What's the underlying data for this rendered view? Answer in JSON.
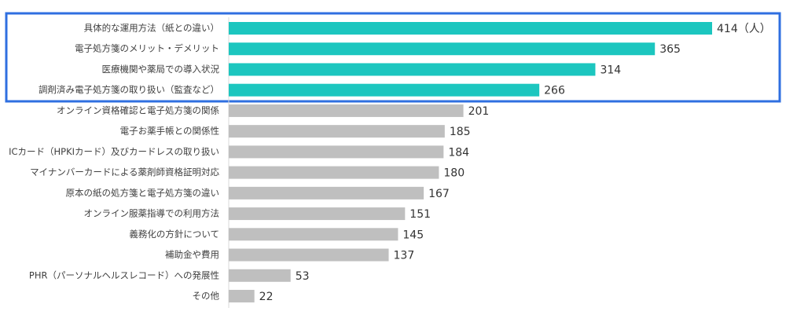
{
  "chart_data": {
    "type": "bar",
    "categories": [
      "具体的な運用方法（紙との違い）",
      "電子処方箋のメリット・デメリット",
      "医療機関や薬局での導入状況",
      "調剤済み電子処方箋の取り扱い（監査など）",
      "オンライン資格確認と電子処方箋の関係",
      "電子お薬手帳との関係性",
      "ICカード（HPKIカード）及びカードレスの取り扱い",
      "マイナンバーカードによる薬剤師資格証明対応",
      "原本の紙の処方箋と電子処方箋の違い",
      "オンライン服薬指導での利用方法",
      "義務化の方針について",
      "補助金や費用",
      "PHR（パーソナルヘルスレコード）への発展性",
      "その他"
    ],
    "values": [
      414,
      365,
      314,
      266,
      201,
      185,
      184,
      180,
      167,
      151,
      145,
      137,
      53,
      22
    ],
    "value_labels": [
      "414（人）",
      "365",
      "314",
      "266",
      "201",
      "185",
      "184",
      "180",
      "167",
      "151",
      "145",
      "137",
      "53",
      "22"
    ],
    "colors": [
      "#1cc6bf",
      "#1cc6bf",
      "#1cc6bf",
      "#1cc6bf",
      "#bfbfbf",
      "#bfbfbf",
      "#bfbfbf",
      "#bfbfbf",
      "#bfbfbf",
      "#bfbfbf",
      "#bfbfbf",
      "#bfbfbf",
      "#bfbfbf",
      "#bfbfbf"
    ]
  }
}
